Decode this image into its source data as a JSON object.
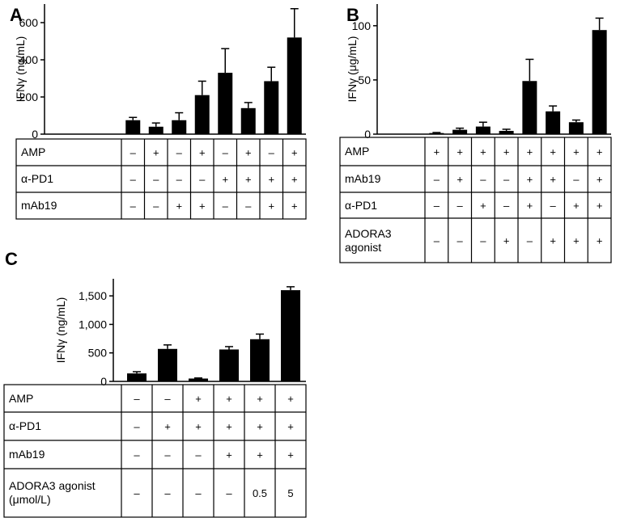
{
  "chart_data": [
    {
      "type": "bar",
      "panel": "A",
      "ylabel": "IFNγ (ng/mL)",
      "color": "#000000",
      "values": [
        75,
        40,
        75,
        210,
        330,
        140,
        285,
        520
      ],
      "errors": [
        15,
        20,
        40,
        75,
        130,
        30,
        75,
        155
      ],
      "ylim": [
        0,
        700
      ],
      "yticks": [
        0,
        200,
        400,
        600
      ],
      "table": {
        "rows": [
          {
            "label": "AMP",
            "cells": [
              "–",
              "+",
              "–",
              "+",
              "–",
              "+",
              "–",
              "+"
            ]
          },
          {
            "label": "α-PD1",
            "cells": [
              "–",
              "–",
              "–",
              "–",
              "+",
              "+",
              "+",
              "+"
            ]
          },
          {
            "label": "mAb19",
            "cells": [
              "–",
              "–",
              "+",
              "+",
              "–",
              "–",
              "+",
              "+"
            ]
          }
        ]
      }
    },
    {
      "type": "bar",
      "panel": "B",
      "ylabel": "IFNγ (μg/mL)",
      "color": "#000000",
      "values": [
        1,
        4,
        7,
        3,
        49,
        21,
        11,
        96
      ],
      "errors": [
        0.5,
        1.5,
        4,
        1.5,
        20,
        5,
        2,
        11
      ],
      "ylim": [
        0,
        120
      ],
      "yticks": [
        0,
        50,
        100
      ],
      "table": {
        "rows": [
          {
            "label": "AMP",
            "cells": [
              "+",
              "+",
              "+",
              "+",
              "+",
              "+",
              "+",
              "+"
            ]
          },
          {
            "label": "mAb19",
            "cells": [
              "–",
              "+",
              "–",
              "–",
              "+",
              "+",
              "–",
              "+"
            ]
          },
          {
            "label": "α-PD1",
            "cells": [
              "–",
              "–",
              "+",
              "–",
              "+",
              "–",
              "+",
              "+"
            ]
          },
          {
            "label": "ADORA3 agonist",
            "cells": [
              "–",
              "–",
              "–",
              "+",
              "–",
              "+",
              "+",
              "+"
            ]
          }
        ]
      }
    },
    {
      "type": "bar",
      "panel": "C",
      "ylabel": "IFNγ (ng/mL)",
      "color": "#000000",
      "values": [
        140,
        570,
        50,
        560,
        740,
        1600
      ],
      "errors": [
        30,
        70,
        10,
        50,
        90,
        60
      ],
      "ylim": [
        0,
        1800
      ],
      "yticks": [
        0,
        500,
        {
          "value": 1000,
          "label": "1,000"
        },
        {
          "value": 1500,
          "label": "1,500"
        }
      ],
      "table": {
        "rows": [
          {
            "label": "AMP",
            "cells": [
              "–",
              "–",
              "+",
              "+",
              "+",
              "+"
            ]
          },
          {
            "label": "α-PD1",
            "cells": [
              "–",
              "+",
              "+",
              "+",
              "+",
              "+"
            ]
          },
          {
            "label": "mAb19",
            "cells": [
              "–",
              "–",
              "–",
              "+",
              "+",
              "+"
            ]
          },
          {
            "label": "ADORA3 agonist (μmol/L)",
            "cells": [
              "–",
              "–",
              "–",
              "–",
              "0.5",
              "5"
            ]
          }
        ]
      }
    }
  ]
}
